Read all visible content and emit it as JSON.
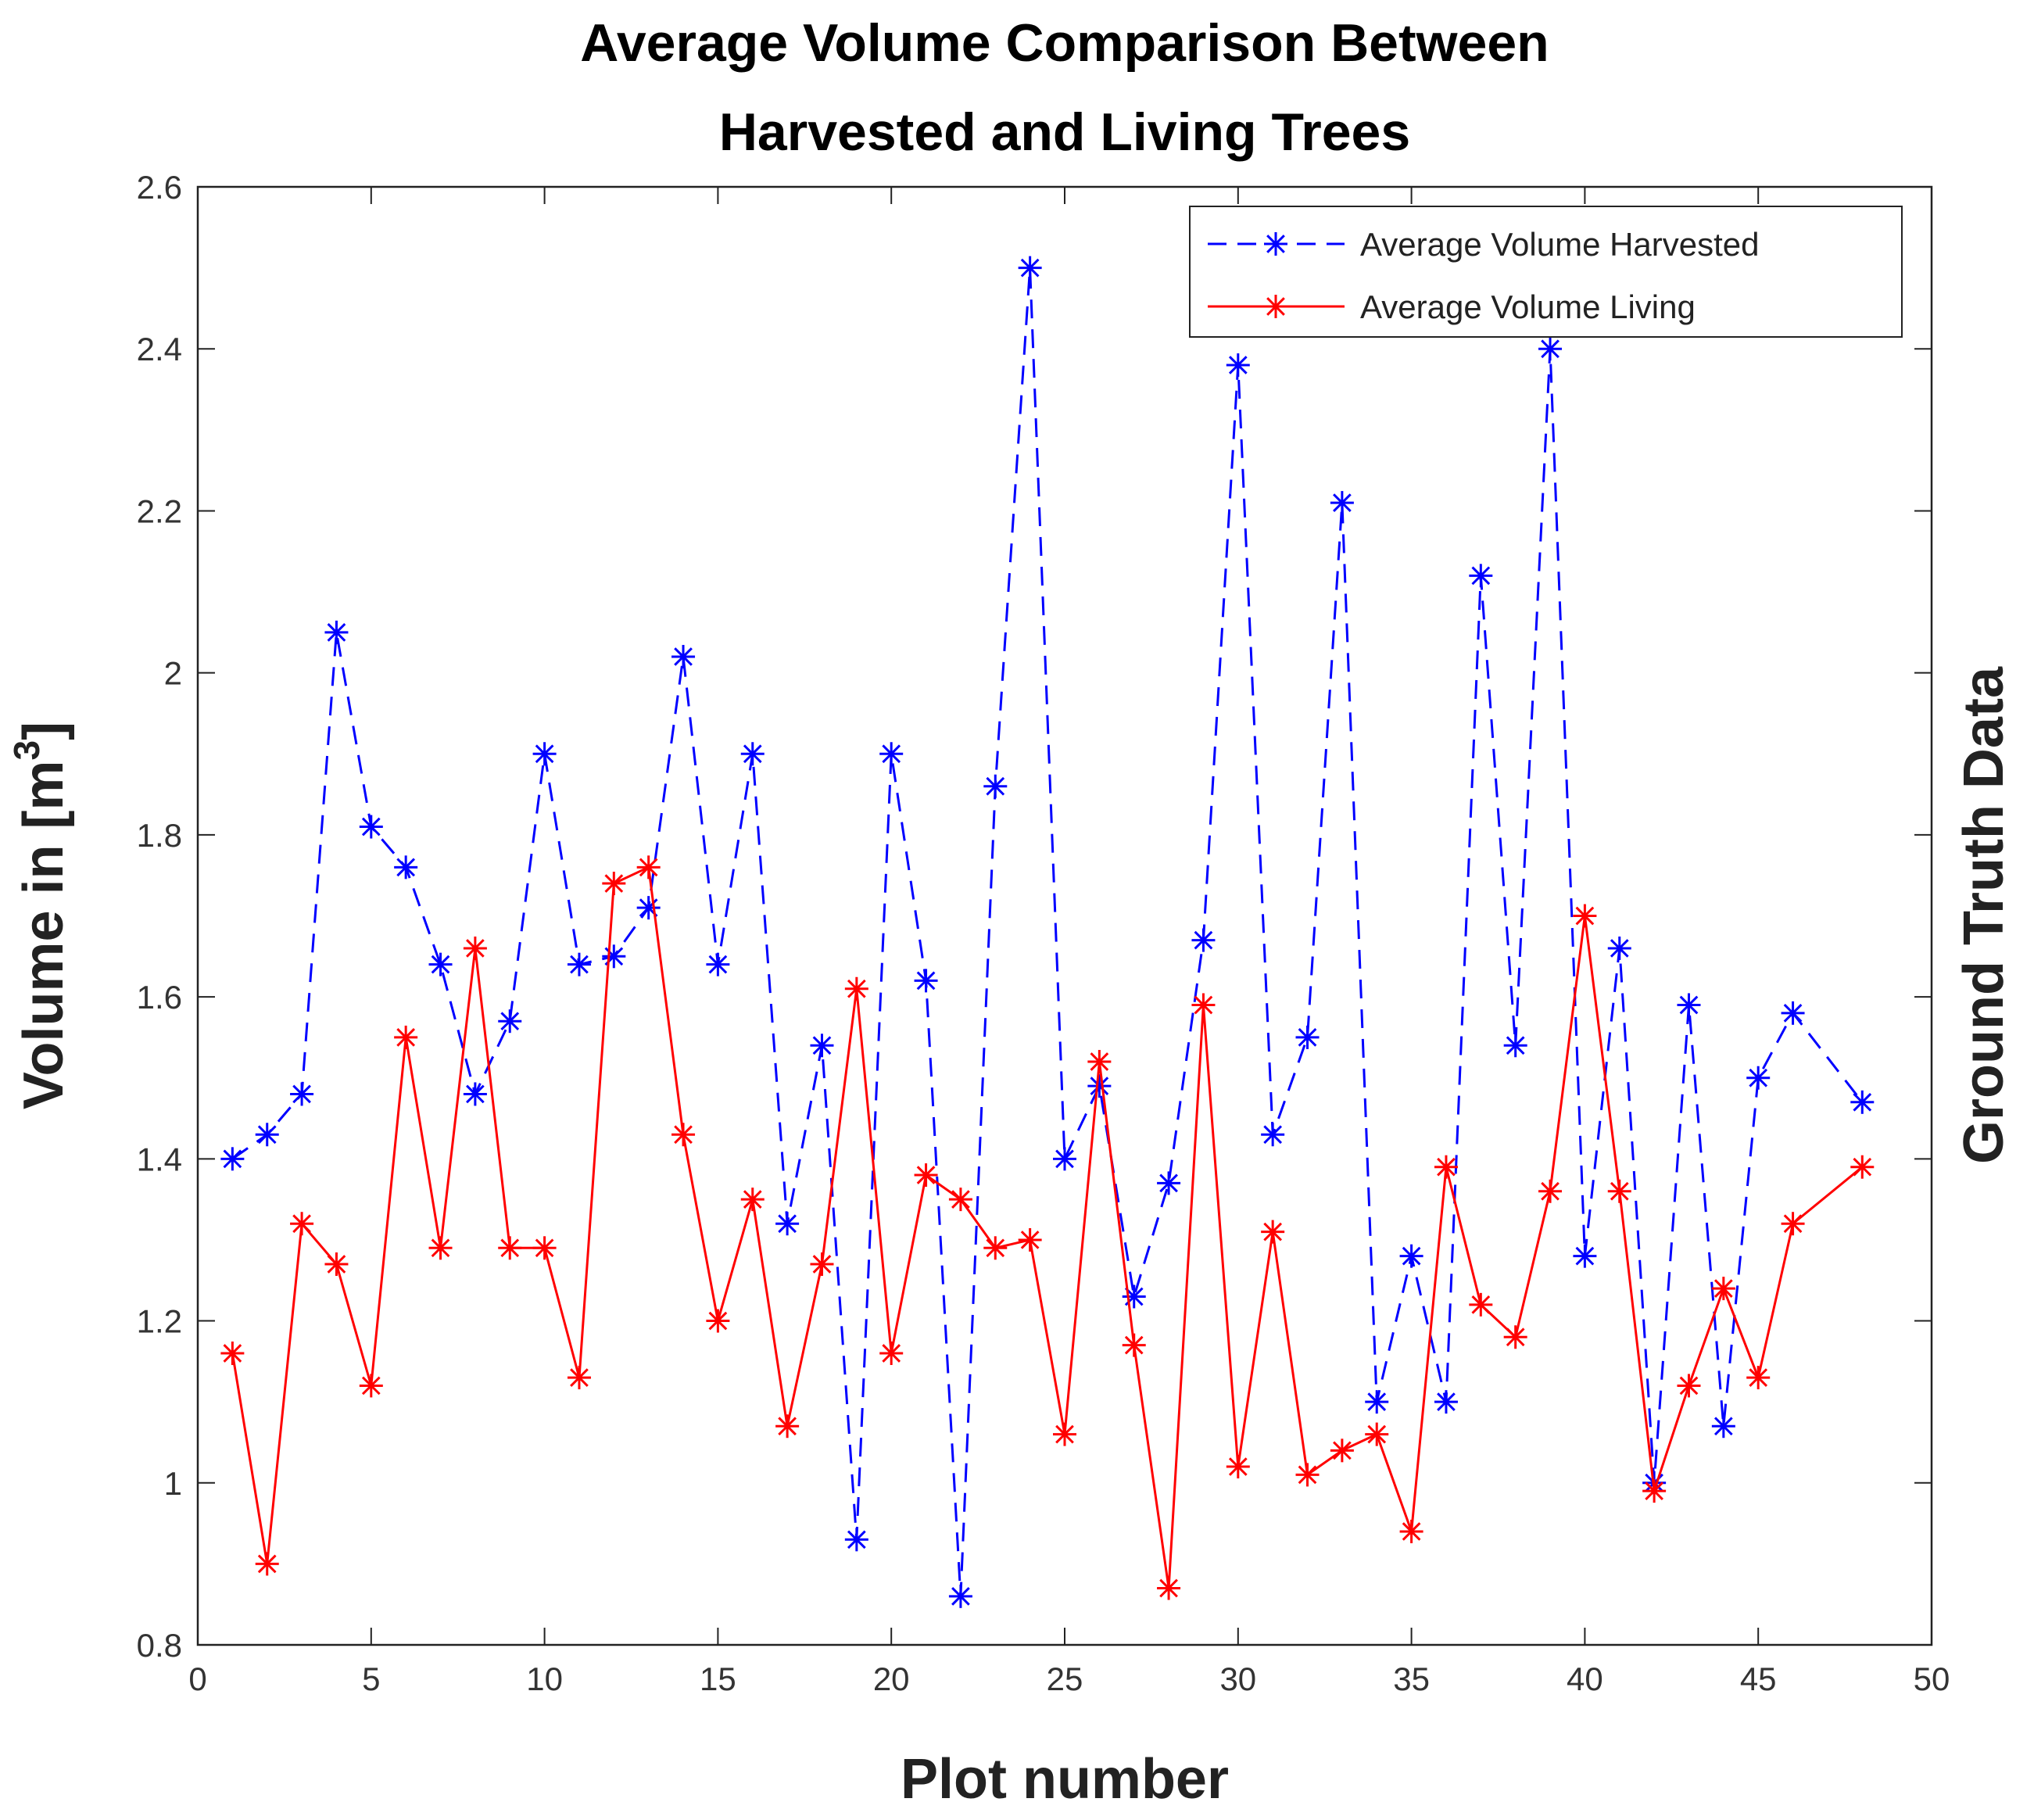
{
  "chart_data": {
    "type": "line",
    "title_lines": [
      "Average Volume Comparison Between",
      "Harvested and Living Trees"
    ],
    "xlabel": "Plot number",
    "ylabel": "Volume in [m",
    "ylabel_sup": "3",
    "ylabel_end": "]",
    "right_label": "Ground Truth Data",
    "xlim": [
      0,
      50
    ],
    "ylim": [
      0.8,
      2.6
    ],
    "xticks": [
      0,
      5,
      10,
      15,
      20,
      25,
      30,
      35,
      40,
      45,
      50
    ],
    "xtick_labels": [
      "0",
      "5",
      "10",
      "15",
      "20",
      "25",
      "30",
      "35",
      "40",
      "45",
      "50"
    ],
    "yticks": [
      0.8,
      1.0,
      1.2,
      1.4,
      1.6,
      1.8,
      2.0,
      2.2,
      2.4,
      2.6
    ],
    "ytick_labels": [
      "0.8",
      "1",
      "1.2",
      "1.4",
      "1.6",
      "1.8",
      "2",
      "2.2",
      "2.4",
      "2.6"
    ],
    "grid": false,
    "legend_position": "top-right",
    "x": [
      1,
      2,
      3,
      4,
      5,
      6,
      7,
      8,
      9,
      10,
      11,
      12,
      13,
      14,
      15,
      16,
      17,
      18,
      19,
      20,
      21,
      22,
      23,
      24,
      25,
      26,
      27,
      28,
      29,
      30,
      31,
      32,
      33,
      34,
      35,
      36,
      37,
      38,
      39,
      40,
      41,
      42,
      43,
      44,
      45,
      46,
      48
    ],
    "series": [
      {
        "name": "Average Volume Harvested",
        "color": "#0000ff",
        "style": "dashed",
        "marker": "asterisk",
        "values": [
          1.4,
          1.43,
          1.48,
          2.05,
          1.81,
          1.76,
          1.64,
          1.48,
          1.57,
          1.9,
          1.64,
          1.65,
          1.71,
          2.02,
          1.64,
          1.9,
          1.32,
          1.54,
          0.93,
          1.9,
          1.62,
          0.86,
          1.86,
          2.5,
          1.4,
          1.49,
          1.23,
          1.37,
          1.67,
          2.38,
          1.43,
          1.55,
          2.21,
          1.1,
          1.28,
          1.1,
          2.12,
          1.54,
          2.4,
          1.28,
          1.66,
          1.0,
          1.59,
          1.07,
          1.5,
          1.58,
          1.47
        ]
      },
      {
        "name": "Average Volume Living",
        "color": "#ff0000",
        "style": "solid",
        "marker": "asterisk",
        "values": [
          1.16,
          0.9,
          1.32,
          1.27,
          1.12,
          1.55,
          1.29,
          1.66,
          1.29,
          1.29,
          1.13,
          1.74,
          1.76,
          1.43,
          1.2,
          1.35,
          1.07,
          1.27,
          1.61,
          1.16,
          1.38,
          1.35,
          1.29,
          1.3,
          1.06,
          1.52,
          1.17,
          0.87,
          1.59,
          1.02,
          1.31,
          1.01,
          1.04,
          1.06,
          0.94,
          1.39,
          1.22,
          1.18,
          1.36,
          1.7,
          1.36,
          0.99,
          1.12,
          1.24,
          1.13,
          1.32,
          1.39
        ]
      }
    ]
  }
}
